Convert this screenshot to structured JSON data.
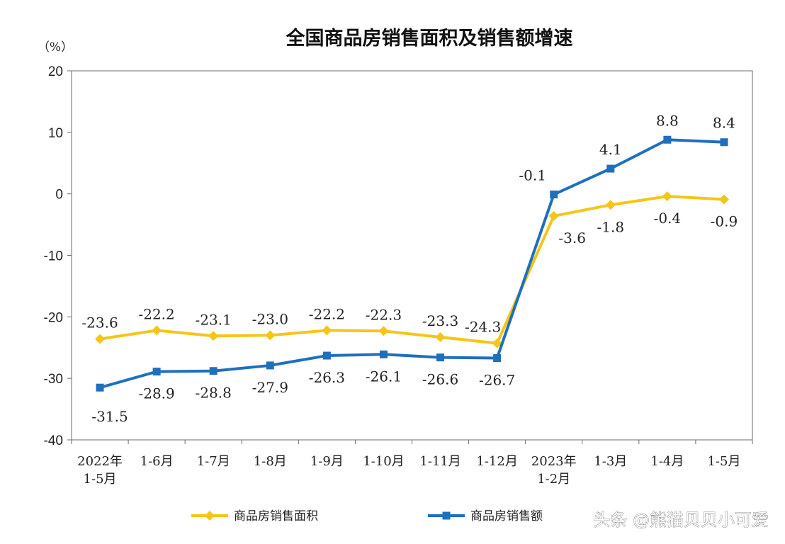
{
  "chart_data": {
    "type": "line",
    "title": "全国商品房销售面积及销售额增速",
    "unit_label": "（%）",
    "ylim": [
      -40,
      20
    ],
    "yticks": [
      "20",
      "10",
      "0",
      "-10",
      "-20",
      "-30",
      "-40"
    ],
    "categories": [
      [
        "2022年",
        "1-5月"
      ],
      [
        "1-6月"
      ],
      [
        "1-7月"
      ],
      [
        "1-8月"
      ],
      [
        "1-9月"
      ],
      [
        "1-10月"
      ],
      [
        "1-11月"
      ],
      [
        "1-12月"
      ],
      [
        "2023年",
        "1-2月"
      ],
      [
        "1-3月"
      ],
      [
        "1-4月"
      ],
      [
        "1-5月"
      ]
    ],
    "series": [
      {
        "name": "商品房销售面积",
        "color": "#F5C518",
        "marker": "diamond",
        "values": [
          -23.6,
          -22.2,
          -23.1,
          -23.0,
          -22.2,
          -22.3,
          -23.3,
          -24.3,
          -3.6,
          -1.8,
          -0.4,
          -0.9
        ],
        "labels": [
          "-23.6",
          "-22.2",
          "-23.1",
          "-23.0",
          "-22.2",
          "-22.3",
          "-23.3",
          "-24.3",
          "-3.6",
          "-1.8",
          "-0.4",
          "-0.9"
        ]
      },
      {
        "name": "商品房销售额",
        "color": "#1F6FBF",
        "marker": "square",
        "values": [
          -31.5,
          -28.9,
          -28.8,
          -27.9,
          -26.3,
          -26.1,
          -26.6,
          -26.7,
          -0.1,
          4.1,
          8.8,
          8.4
        ],
        "labels": [
          "-31.5",
          "-28.9",
          "-28.8",
          "-27.9",
          "-26.3",
          "-26.1",
          "-26.6",
          "-26.7",
          "-0.1",
          "4.1",
          "8.8",
          "8.4"
        ]
      }
    ],
    "legend": "bottom"
  },
  "watermark": "头条 @熊猫贝贝小可爱"
}
